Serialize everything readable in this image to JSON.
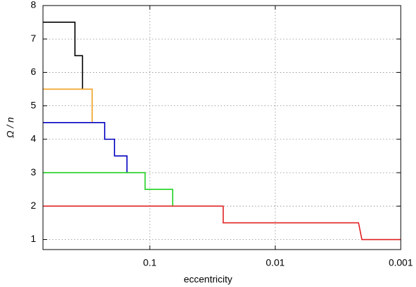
{
  "chart_data": {
    "type": "line",
    "x_label": "eccentricity",
    "y_label": "Ω / n",
    "xscale": "log",
    "xlim": [
      0.71,
      0.001
    ],
    "xticks": [
      0.1,
      0.01,
      0.001
    ],
    "ylim": [
      0.7,
      8
    ],
    "yticks": [
      1,
      2,
      3,
      4,
      5,
      6,
      7,
      8
    ],
    "grid": true,
    "series": [
      {
        "color": "#000000",
        "x": [
          0.71,
          0.395,
          0.395,
          0.344,
          0.344
        ],
        "values": [
          7.5,
          7.5,
          6.5,
          6.5,
          5.5
        ]
      },
      {
        "color": "#f0a020",
        "x": [
          0.71,
          0.288,
          0.288
        ],
        "values": [
          5.5,
          5.5,
          4.5
        ]
      },
      {
        "color": "#0000c0",
        "x": [
          0.71,
          0.229,
          0.229,
          0.191,
          0.191,
          0.152,
          0.152
        ],
        "values": [
          4.5,
          4.5,
          4,
          4,
          3.5,
          3.5,
          3
        ]
      },
      {
        "color": "#20d020",
        "x": [
          0.71,
          0.109,
          0.109,
          0.0657,
          0.0657
        ],
        "values": [
          3,
          3,
          2.5,
          2.5,
          2
        ]
      },
      {
        "color": "#e02020",
        "x": [
          0.71,
          0.026,
          0.026,
          0.00217,
          0.00204,
          0.001
        ],
        "values": [
          2,
          2,
          1.5,
          1.5,
          1,
          1
        ]
      }
    ]
  }
}
